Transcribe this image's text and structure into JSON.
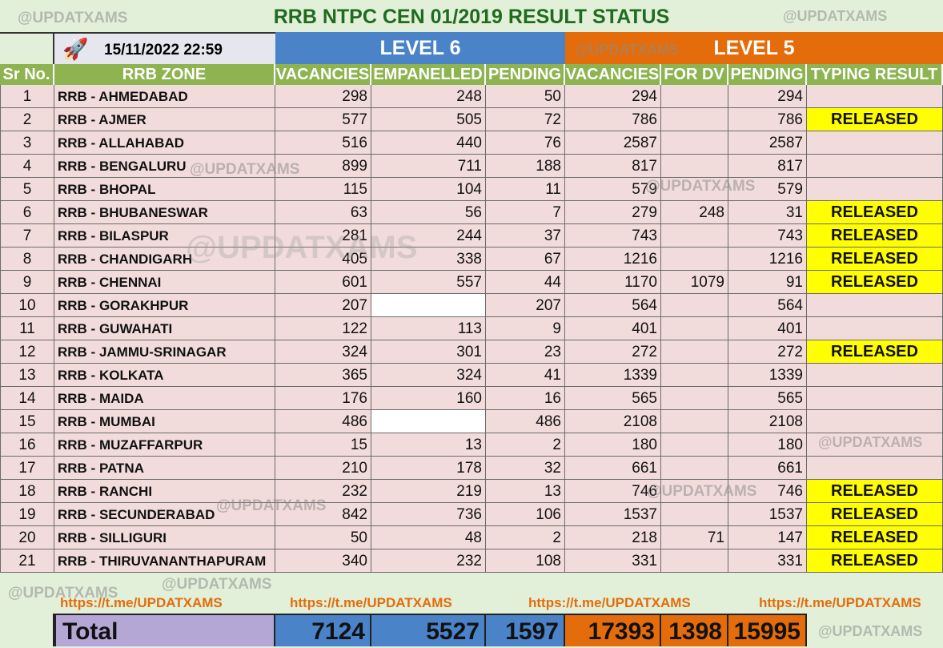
{
  "title": "RRB NTPC CEN 01/2019 RESULT STATUS",
  "watermark": "@UPDATXAMS",
  "datetime": "15/11/2022 22:59",
  "rocket_icon": "rocket-icon",
  "level6_label": "LEVEL 6",
  "level5_label": "LEVEL 5",
  "columns": [
    "Sr No.",
    "RRB ZONE",
    "VACANCIES",
    "EMPANELLED",
    "PENDING",
    "VACANCIES",
    "FOR DV",
    "PENDING",
    "TYPING RESULT"
  ],
  "rows": [
    {
      "sr": "1",
      "zone": "RRB - AHMEDABAD",
      "l6v": "298",
      "emp": "248",
      "l6p": "50",
      "l5v": "294",
      "dv": "",
      "l5p": "294",
      "typing": ""
    },
    {
      "sr": "2",
      "zone": "RRB - AJMER",
      "l6v": "577",
      "emp": "505",
      "l6p": "72",
      "l5v": "786",
      "dv": "",
      "l5p": "786",
      "typing": "RELEASED"
    },
    {
      "sr": "3",
      "zone": "RRB - ALLAHABAD",
      "l6v": "516",
      "emp": "440",
      "l6p": "76",
      "l5v": "2587",
      "dv": "",
      "l5p": "2587",
      "typing": ""
    },
    {
      "sr": "4",
      "zone": "RRB - BENGALURU",
      "l6v": "899",
      "emp": "711",
      "l6p": "188",
      "l5v": "817",
      "dv": "",
      "l5p": "817",
      "typing": ""
    },
    {
      "sr": "5",
      "zone": "RRB - BHOPAL",
      "l6v": "115",
      "emp": "104",
      "l6p": "11",
      "l5v": "579",
      "dv": "",
      "l5p": "579",
      "typing": ""
    },
    {
      "sr": "6",
      "zone": "RRB - BHUBANESWAR",
      "l6v": "63",
      "emp": "56",
      "l6p": "7",
      "l5v": "279",
      "dv": "248",
      "l5p": "31",
      "typing": "RELEASED"
    },
    {
      "sr": "7",
      "zone": "RRB - BILASPUR",
      "l6v": "281",
      "emp": "244",
      "l6p": "37",
      "l5v": "743",
      "dv": "",
      "l5p": "743",
      "typing": "RELEASED"
    },
    {
      "sr": "8",
      "zone": "RRB - CHANDIGARH",
      "l6v": "405",
      "emp": "338",
      "l6p": "67",
      "l5v": "1216",
      "dv": "",
      "l5p": "1216",
      "typing": "RELEASED"
    },
    {
      "sr": "9",
      "zone": "RRB - CHENNAI",
      "l6v": "601",
      "emp": "557",
      "l6p": "44",
      "l5v": "1170",
      "dv": "1079",
      "l5p": "91",
      "typing": "RELEASED"
    },
    {
      "sr": "10",
      "zone": "RRB - GORAKHPUR",
      "l6v": "207",
      "emp": "",
      "l6p": "207",
      "l5v": "564",
      "dv": "",
      "l5p": "564",
      "typing": "",
      "blank": true
    },
    {
      "sr": "11",
      "zone": "RRB - GUWAHATI",
      "l6v": "122",
      "emp": "113",
      "l6p": "9",
      "l5v": "401",
      "dv": "",
      "l5p": "401",
      "typing": ""
    },
    {
      "sr": "12",
      "zone": "RRB - JAMMU-SRINAGAR",
      "l6v": "324",
      "emp": "301",
      "l6p": "23",
      "l5v": "272",
      "dv": "",
      "l5p": "272",
      "typing": "RELEASED"
    },
    {
      "sr": "13",
      "zone": "RRB - KOLKATA",
      "l6v": "365",
      "emp": "324",
      "l6p": "41",
      "l5v": "1339",
      "dv": "",
      "l5p": "1339",
      "typing": ""
    },
    {
      "sr": "14",
      "zone": "RRB - MAIDA",
      "l6v": "176",
      "emp": "160",
      "l6p": "16",
      "l5v": "565",
      "dv": "",
      "l5p": "565",
      "typing": ""
    },
    {
      "sr": "15",
      "zone": "RRB - MUMBAI",
      "l6v": "486",
      "emp": "",
      "l6p": "486",
      "l5v": "2108",
      "dv": "",
      "l5p": "2108",
      "typing": "",
      "blank": true
    },
    {
      "sr": "16",
      "zone": "RRB - MUZAFFARPUR",
      "l6v": "15",
      "emp": "13",
      "l6p": "2",
      "l5v": "180",
      "dv": "",
      "l5p": "180",
      "typing": ""
    },
    {
      "sr": "17",
      "zone": "RRB - PATNA",
      "l6v": "210",
      "emp": "178",
      "l6p": "32",
      "l5v": "661",
      "dv": "",
      "l5p": "661",
      "typing": ""
    },
    {
      "sr": "18",
      "zone": "RRB - RANCHI",
      "l6v": "232",
      "emp": "219",
      "l6p": "13",
      "l5v": "746",
      "dv": "",
      "l5p": "746",
      "typing": "RELEASED"
    },
    {
      "sr": "19",
      "zone": "RRB - SECUNDERABAD",
      "l6v": "842",
      "emp": "736",
      "l6p": "106",
      "l5v": "1537",
      "dv": "",
      "l5p": "1537",
      "typing": "RELEASED"
    },
    {
      "sr": "20",
      "zone": "RRB - SILLIGURI",
      "l6v": "50",
      "emp": "48",
      "l6p": "2",
      "l5v": "218",
      "dv": "71",
      "l5p": "147",
      "typing": "RELEASED"
    },
    {
      "sr": "21",
      "zone": "RRB - THIRUVANANTHAPURAM",
      "l6v": "340",
      "emp": "232",
      "l6p": "108",
      "l5v": "331",
      "dv": "",
      "l5p": "331",
      "typing": "RELEASED"
    }
  ],
  "footer_link": "https://t.me/UPDATXAMS",
  "total": {
    "label": "Total",
    "l6v": "7124",
    "emp": "5527",
    "l6p": "1597",
    "l5v": "17393",
    "dv": "1398",
    "l5p": "15995"
  },
  "colors": {
    "level6": "#4a83c8",
    "level5": "#e46c0a",
    "header": "#8db451",
    "released": "#ffff00",
    "row": "#f2dcdb"
  }
}
